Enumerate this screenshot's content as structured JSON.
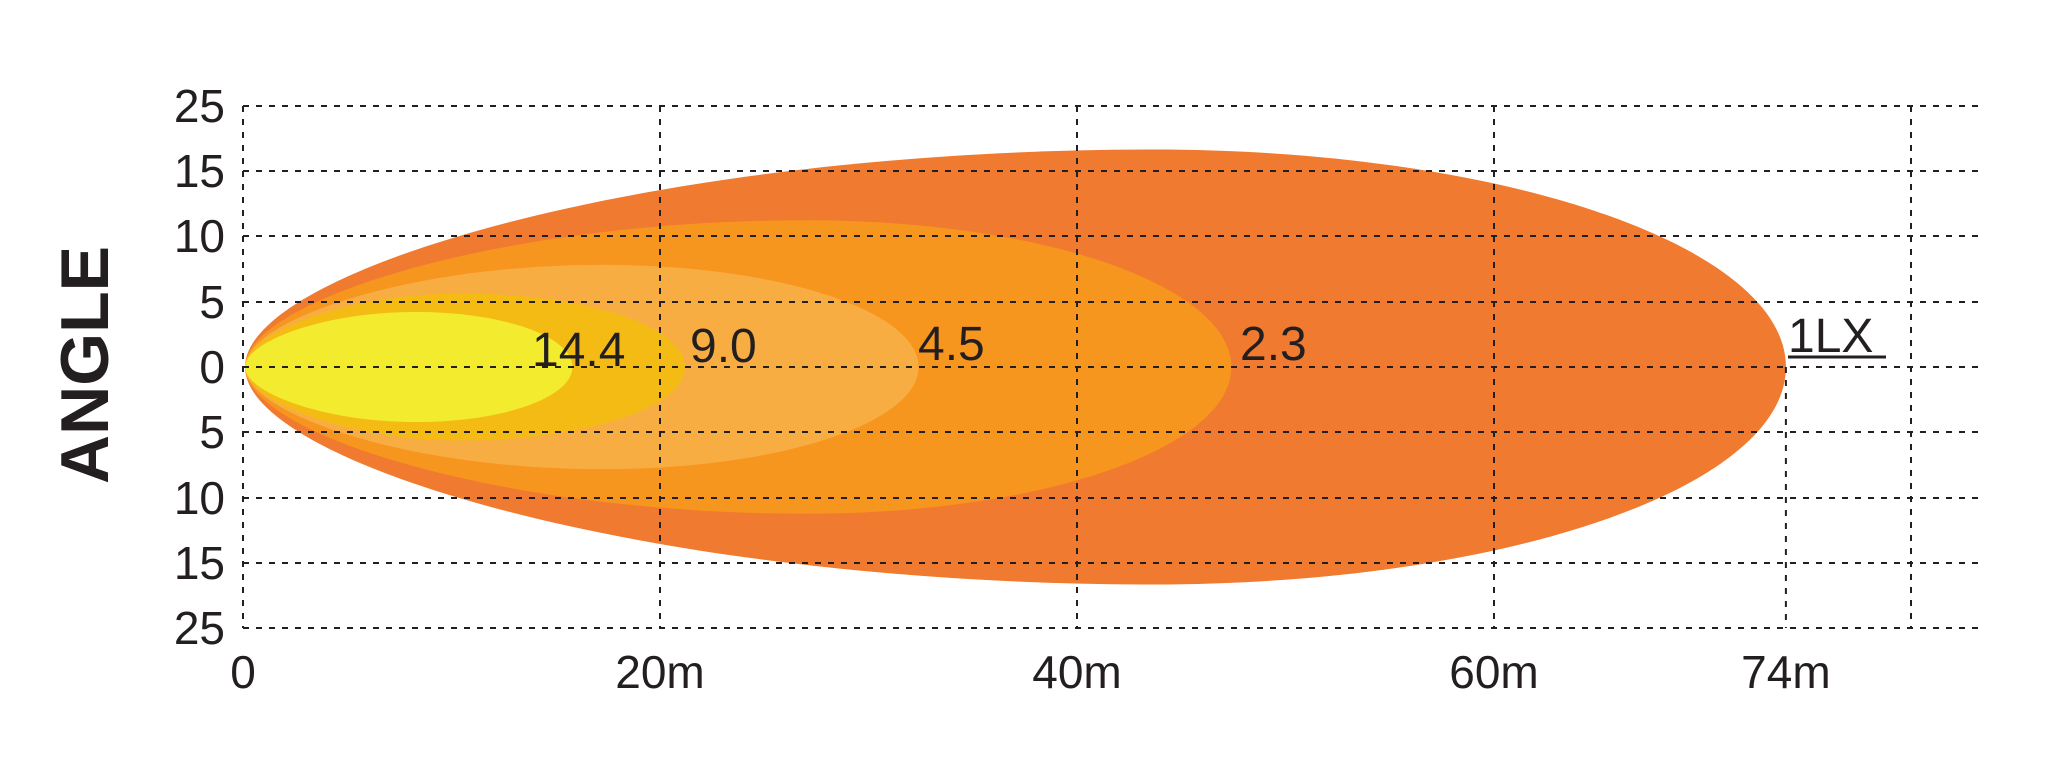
{
  "chart_data": {
    "type": "isolux-beam-pattern",
    "title": "",
    "ylabel": "ANGLE",
    "xlabel": "",
    "x_ticks": [
      {
        "value": 0,
        "label": "0"
      },
      {
        "value": 20,
        "label": "20m"
      },
      {
        "value": 40,
        "label": "40m"
      },
      {
        "value": 60,
        "label": "60m"
      },
      {
        "value": 74,
        "label": "74m"
      }
    ],
    "x_grid_values": [
      20,
      40,
      60,
      80
    ],
    "y_ticks": [
      {
        "value": 25,
        "label": "25"
      },
      {
        "value": 15,
        "label": "15"
      },
      {
        "value": 10,
        "label": "10"
      },
      {
        "value": 5,
        "label": "5"
      },
      {
        "value": 0,
        "label": "0"
      },
      {
        "value": -5,
        "label": "5"
      },
      {
        "value": -10,
        "label": "10"
      },
      {
        "value": -15,
        "label": "15"
      },
      {
        "value": -25,
        "label": "25"
      }
    ],
    "grid": true,
    "contours": [
      {
        "label": "1LX",
        "lux": 1,
        "reach_m": 74,
        "peak_x_m": 43.6,
        "half_width": 16.6,
        "color": "#f07a2f"
      },
      {
        "label": "2.3",
        "lux": 2.3,
        "reach_m": 47.4,
        "peak_x_m": 27,
        "half_width": 11.2,
        "color": "#f6961e"
      },
      {
        "label": "4.5",
        "lux": 4.5,
        "reach_m": 32.4,
        "peak_x_m": 17.2,
        "half_width": 7.8,
        "color": "#f8ad43"
      },
      {
        "label": "9.0",
        "lux": 9.0,
        "reach_m": 21.2,
        "peak_x_m": 10.5,
        "half_width": 5.6,
        "color": "#f4bb14"
      },
      {
        "label": "14.4",
        "lux": 14.4,
        "reach_m": 15.8,
        "peak_x_m": 8.3,
        "half_width": 4.2,
        "color": "#f3ec2e"
      }
    ]
  }
}
